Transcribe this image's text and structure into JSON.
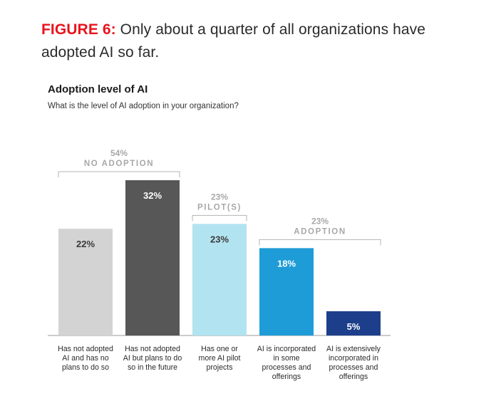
{
  "figure": {
    "label": "FIGURE 6:",
    "text": " Only about a quarter of all organizations have adopted AI so far."
  },
  "chart_data": {
    "type": "bar",
    "title": "Adoption level of AI",
    "subtitle": "What is the level of AI adoption in your organization?",
    "unit": "%",
    "ylim": [
      0,
      32
    ],
    "grid": false,
    "categories": [
      "Has not adopted AI and has no plans to do so",
      "Has not adopted AI but plans to do so in the future",
      "Has one or more AI pilot projects",
      "AI is incorporated in some processes and offerings",
      "AI is extensively incorporated in processes and offerings"
    ],
    "category_lines": [
      [
        "Has not adopted",
        "AI and has no",
        "plans to do so"
      ],
      [
        "Has not adopted",
        "AI but plans to do",
        "so in the future"
      ],
      [
        "Has one or",
        "more AI pilot",
        "projects"
      ],
      [
        "AI is incorporated",
        "in some",
        "processes and",
        "offerings"
      ],
      [
        "AI is extensively",
        "incorporated in",
        "processes and",
        "offerings"
      ]
    ],
    "values": [
      22,
      32,
      23,
      18,
      5
    ],
    "data_labels": [
      "22%",
      "32%",
      "23%",
      "18%",
      "5%"
    ],
    "colors": [
      "#d3d3d3",
      "#575757",
      "#b2e3f0",
      "#1e9cd7",
      "#1d3f8b"
    ],
    "label_colors": [
      "#3a3a3a",
      "#ffffff",
      "#3a3a3a",
      "#ffffff",
      "#ffffff"
    ],
    "groups": [
      {
        "pct": "54%",
        "name": "NO ADOPTION",
        "bars": [
          0,
          1
        ]
      },
      {
        "pct": "23%",
        "name": "PILOT(S)",
        "bars": [
          2,
          2
        ]
      },
      {
        "pct": "23%",
        "name": "ADOPTION",
        "bars": [
          3,
          4
        ]
      }
    ]
  }
}
